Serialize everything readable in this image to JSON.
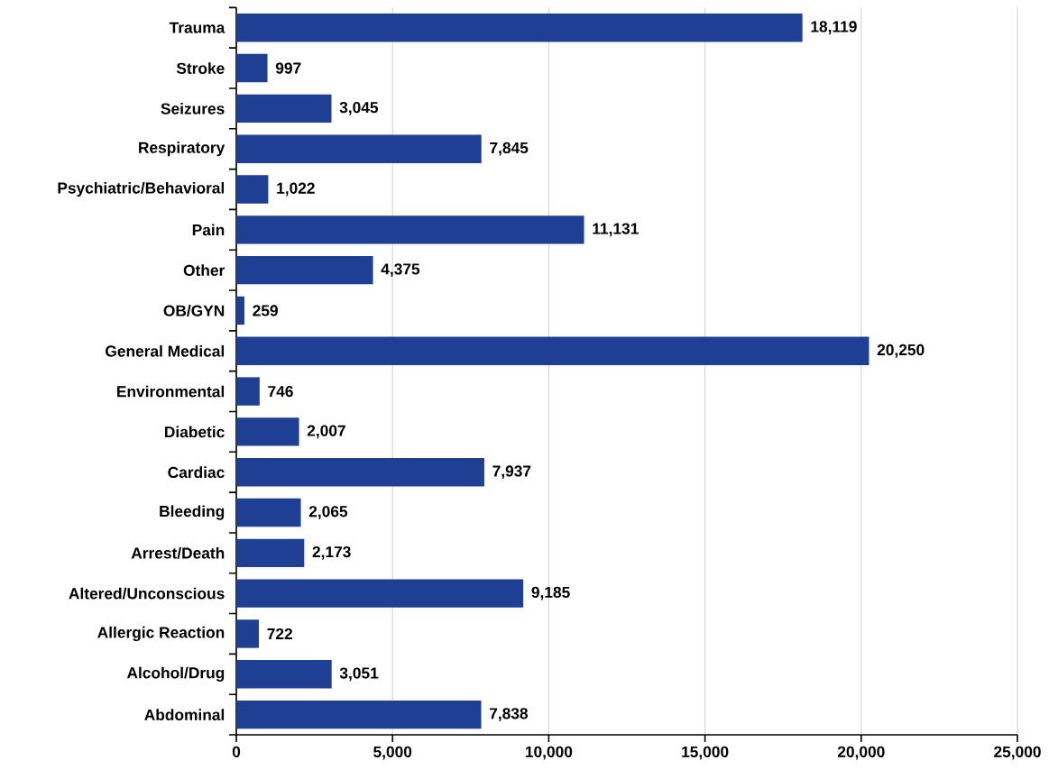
{
  "chart_data": {
    "type": "bar",
    "orientation": "horizontal",
    "categories": [
      "Trauma",
      "Stroke",
      "Seizures",
      "Respiratory",
      "Psychiatric/Behavioral",
      "Pain",
      "Other",
      "OB/GYN",
      "General Medical",
      "Environmental",
      "Diabetic",
      "Cardiac",
      "Bleeding",
      "Arrest/Death",
      "Altered/Unconscious",
      "Allergic Reaction",
      "Alcohol/Drug",
      "Abdominal"
    ],
    "values": [
      18119,
      997,
      3045,
      7845,
      1022,
      11131,
      4375,
      259,
      20250,
      746,
      2007,
      7937,
      2065,
      2173,
      9185,
      722,
      3051,
      7838
    ],
    "value_labels": [
      "18,119",
      "997",
      "3,045",
      "7,845",
      "1,022",
      "11,131",
      "4,375",
      "259",
      "20,250",
      "746",
      "2,007",
      "7,937",
      "2,065",
      "2,173",
      "9,185",
      "722",
      "3,051",
      "7,838"
    ],
    "color": "#1f3f94",
    "xlim": [
      0,
      25000
    ],
    "xticks": [
      0,
      {
        "value": 5000,
        "label": "5,000"
      },
      {
        "value": 10000,
        "label": "10,000"
      },
      {
        "value": 15000,
        "label": "15,000"
      },
      {
        "value": 20000,
        "label": "20,000"
      },
      {
        "value": 25000,
        "label": "25,000"
      }
    ],
    "grid": "x"
  }
}
